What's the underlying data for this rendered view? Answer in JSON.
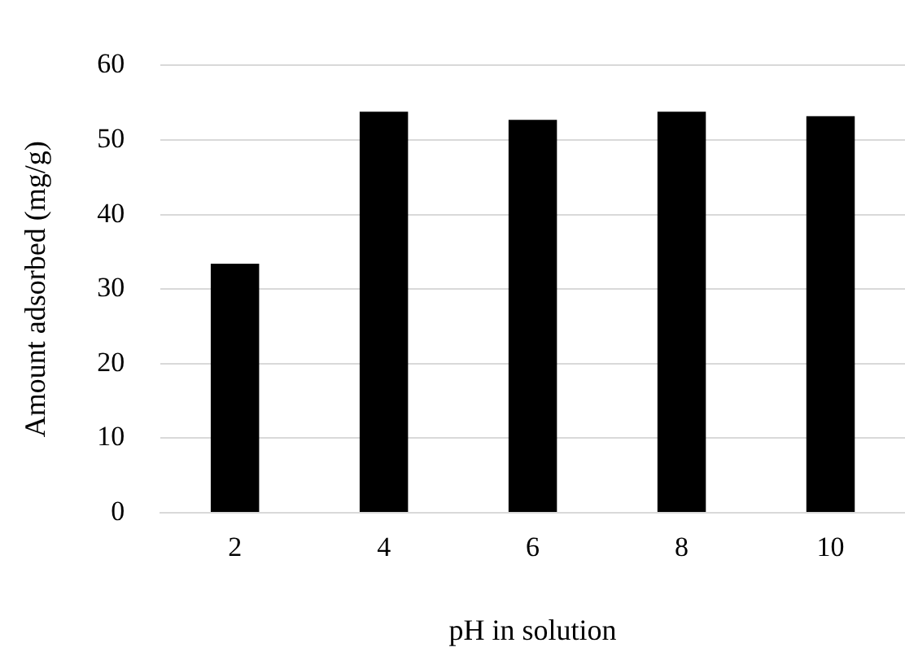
{
  "chart_data": {
    "type": "bar",
    "xlabel": "pH in solution",
    "ylabel": "Amount adsorbed (mg/g)",
    "categories": [
      "2",
      "4",
      "6",
      "8",
      "10"
    ],
    "values": [
      33.4,
      53.8,
      52.7,
      53.8,
      53.2
    ],
    "color": "#000000",
    "ylim": [
      0,
      60
    ],
    "yticks": [
      0,
      10,
      20,
      30,
      40,
      50,
      60
    ],
    "grid": "y",
    "legend": false
  }
}
